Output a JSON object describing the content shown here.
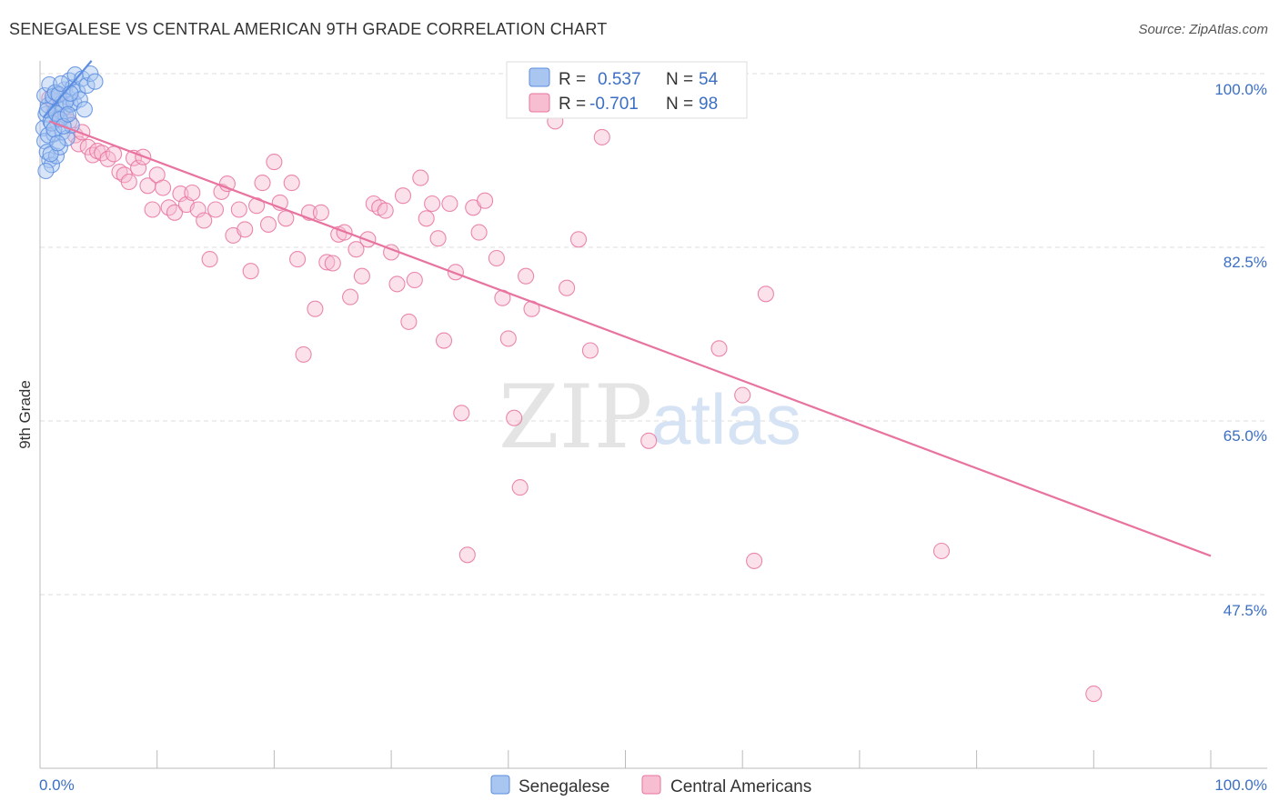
{
  "title": "SENEGALESE VS CENTRAL AMERICAN 9TH GRADE CORRELATION CHART",
  "source": "Source: ZipAtlas.com",
  "chart_data": {
    "type": "scatter",
    "title": "SENEGALESE VS CENTRAL AMERICAN 9TH GRADE CORRELATION CHART",
    "xlabel": "",
    "ylabel": "9th Grade",
    "xlim": [
      0,
      100
    ],
    "ylim": [
      31.5,
      101.5
    ],
    "x_tick_labels": [
      "0.0%",
      "100.0%"
    ],
    "y_ticks": [
      100.0,
      82.5,
      65.0,
      47.5
    ],
    "y_tick_labels": [
      "100.0%",
      "82.5%",
      "65.0%",
      "47.5%"
    ],
    "grid": true,
    "legend_position": "top-center",
    "watermark": {
      "zip": "ZIP",
      "atlas": "atlas"
    },
    "stats": [
      {
        "name": "Senegalese",
        "r_label": "R =",
        "r_value": "0.537",
        "n_label": "N =",
        "n_value": "54"
      },
      {
        "name": "Central Americans",
        "r_label": "R =",
        "r_value": "-0.701",
        "n_label": "N =",
        "n_value": "98"
      }
    ],
    "series": [
      {
        "name": "Senegalese",
        "color": "#5b8de0",
        "fill": "#a9c6f0",
        "trend": {
          "x": [
            0.3,
            4.4
          ],
          "y": [
            95.6,
            101.3
          ]
        },
        "points": [
          [
            0.3,
            94.5
          ],
          [
            0.4,
            93.2
          ],
          [
            0.5,
            95.9
          ],
          [
            0.6,
            92.1
          ],
          [
            0.7,
            96.8
          ],
          [
            0.8,
            91.3
          ],
          [
            0.9,
            95.2
          ],
          [
            1.0,
            90.8
          ],
          [
            1.1,
            97.3
          ],
          [
            1.2,
            93.9
          ],
          [
            1.3,
            96.1
          ],
          [
            1.4,
            91.7
          ],
          [
            1.5,
            98.0
          ],
          [
            1.6,
            95.5
          ],
          [
            1.7,
            92.6
          ],
          [
            1.8,
            97.0
          ],
          [
            1.9,
            94.1
          ],
          [
            2.0,
            96.5
          ],
          [
            2.1,
            98.4
          ],
          [
            2.2,
            95.8
          ],
          [
            2.3,
            93.5
          ],
          [
            2.4,
            97.6
          ],
          [
            2.5,
            99.3
          ],
          [
            2.6,
            96.9
          ],
          [
            2.7,
            94.8
          ],
          [
            2.8,
            98.6
          ],
          [
            2.9,
            97.1
          ],
          [
            3.0,
            99.9
          ],
          [
            3.2,
            98.2
          ],
          [
            3.4,
            97.4
          ],
          [
            3.6,
            99.5
          ],
          [
            3.8,
            96.4
          ],
          [
            4.0,
            98.8
          ],
          [
            4.3,
            100.0
          ],
          [
            4.7,
            99.2
          ],
          [
            0.4,
            97.8
          ],
          [
            0.5,
            90.2
          ],
          [
            0.6,
            96.3
          ],
          [
            0.7,
            93.8
          ],
          [
            0.8,
            98.9
          ],
          [
            0.9,
            91.9
          ],
          [
            1.0,
            95.0
          ],
          [
            1.1,
            97.7
          ],
          [
            1.2,
            94.4
          ],
          [
            1.3,
            98.1
          ],
          [
            1.4,
            96.0
          ],
          [
            1.5,
            93.0
          ],
          [
            1.6,
            97.9
          ],
          [
            1.7,
            95.4
          ],
          [
            1.8,
            99.0
          ],
          [
            2.0,
            94.7
          ],
          [
            2.2,
            97.2
          ],
          [
            2.4,
            95.9
          ],
          [
            2.6,
            98.0
          ]
        ]
      },
      {
        "name": "Central Americans",
        "color": "#e8739f",
        "fill": "#f7bdd0",
        "trend": {
          "x": [
            0.8,
            100.0
          ],
          "y": [
            95.2,
            51.4
          ]
        },
        "points": [
          [
            0.8,
            97.5
          ],
          [
            1.2,
            96.2
          ],
          [
            1.5,
            97.8
          ],
          [
            2.0,
            95.6
          ],
          [
            2.5,
            95.2
          ],
          [
            3.0,
            93.8
          ],
          [
            3.3,
            92.9
          ],
          [
            3.6,
            94.1
          ],
          [
            4.1,
            92.6
          ],
          [
            4.5,
            91.8
          ],
          [
            4.9,
            92.2
          ],
          [
            5.3,
            92.0
          ],
          [
            5.8,
            91.4
          ],
          [
            6.3,
            91.9
          ],
          [
            6.8,
            90.1
          ],
          [
            7.2,
            89.8
          ],
          [
            7.6,
            89.1
          ],
          [
            8.0,
            91.5
          ],
          [
            8.4,
            90.5
          ],
          [
            8.8,
            91.6
          ],
          [
            9.2,
            88.7
          ],
          [
            9.6,
            86.3
          ],
          [
            10.0,
            89.8
          ],
          [
            10.5,
            88.5
          ],
          [
            11.0,
            86.5
          ],
          [
            11.5,
            86.0
          ],
          [
            12.0,
            87.9
          ],
          [
            12.5,
            86.8
          ],
          [
            13.0,
            88.0
          ],
          [
            13.5,
            86.3
          ],
          [
            14.0,
            85.2
          ],
          [
            14.5,
            81.3
          ],
          [
            15.0,
            86.3
          ],
          [
            15.5,
            88.1
          ],
          [
            16.0,
            88.9
          ],
          [
            16.5,
            83.7
          ],
          [
            17.0,
            86.3
          ],
          [
            17.5,
            84.3
          ],
          [
            18.0,
            80.1
          ],
          [
            18.5,
            86.7
          ],
          [
            19.0,
            89.0
          ],
          [
            19.5,
            84.8
          ],
          [
            20.0,
            91.1
          ],
          [
            20.5,
            87.0
          ],
          [
            21.0,
            85.4
          ],
          [
            21.5,
            89.0
          ],
          [
            22.0,
            81.3
          ],
          [
            22.5,
            71.7
          ],
          [
            23.0,
            86.0
          ],
          [
            23.5,
            76.3
          ],
          [
            24.0,
            86.0
          ],
          [
            24.5,
            81.0
          ],
          [
            25.0,
            80.9
          ],
          [
            25.5,
            83.8
          ],
          [
            26.0,
            84.0
          ],
          [
            26.5,
            77.5
          ],
          [
            27.0,
            82.3
          ],
          [
            27.5,
            79.6
          ],
          [
            28.0,
            83.3
          ],
          [
            28.5,
            86.9
          ],
          [
            29.0,
            86.5
          ],
          [
            29.5,
            86.2
          ],
          [
            30.0,
            82.0
          ],
          [
            30.5,
            78.8
          ],
          [
            31.0,
            87.7
          ],
          [
            31.5,
            75.0
          ],
          [
            32.0,
            79.2
          ],
          [
            32.5,
            89.5
          ],
          [
            33.0,
            85.4
          ],
          [
            33.5,
            86.9
          ],
          [
            34.0,
            83.4
          ],
          [
            34.5,
            73.1
          ],
          [
            35.0,
            86.9
          ],
          [
            35.5,
            80.0
          ],
          [
            36.0,
            65.8
          ],
          [
            36.5,
            51.5
          ],
          [
            37.0,
            86.5
          ],
          [
            37.5,
            84.0
          ],
          [
            38.0,
            87.2
          ],
          [
            39.0,
            81.4
          ],
          [
            39.5,
            77.4
          ],
          [
            40.0,
            73.3
          ],
          [
            40.5,
            65.3
          ],
          [
            41.0,
            58.3
          ],
          [
            41.5,
            79.6
          ],
          [
            42.0,
            76.3
          ],
          [
            44.0,
            95.2
          ],
          [
            45.0,
            78.4
          ],
          [
            46.0,
            83.3
          ],
          [
            47.0,
            72.1
          ],
          [
            48.0,
            93.6
          ],
          [
            52.0,
            63.0
          ],
          [
            58.0,
            72.3
          ],
          [
            60.0,
            67.6
          ],
          [
            61.0,
            50.9
          ],
          [
            62.0,
            77.8
          ],
          [
            77.0,
            51.9
          ],
          [
            90.0,
            37.5
          ]
        ]
      }
    ]
  }
}
